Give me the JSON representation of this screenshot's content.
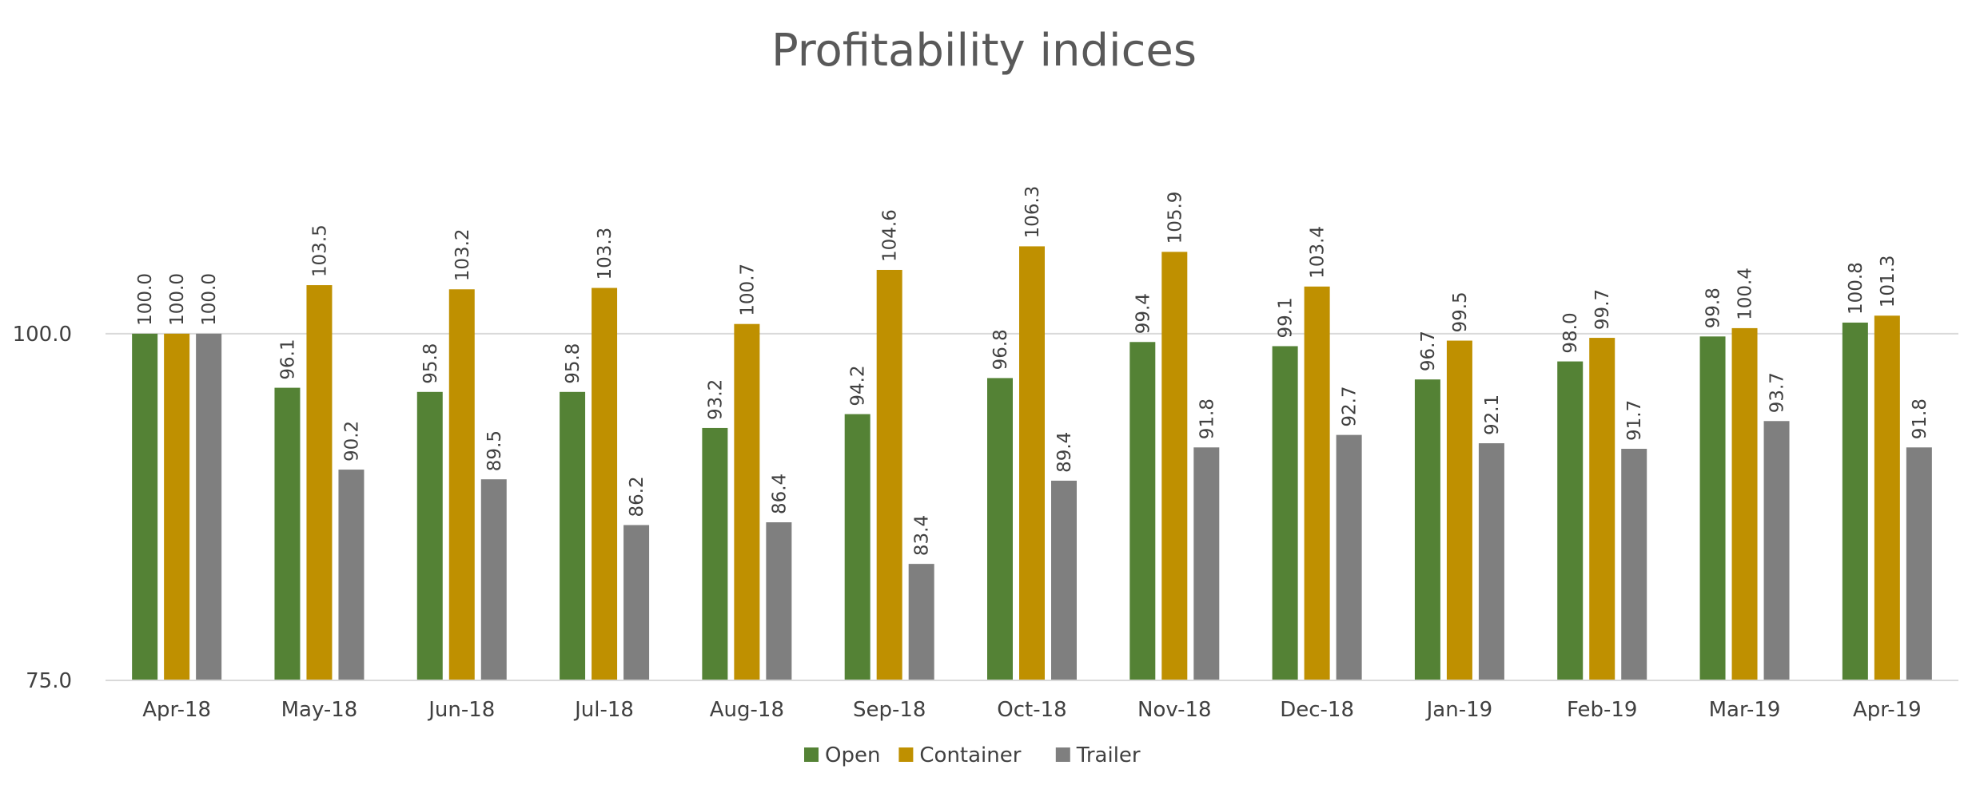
{
  "chart_data": {
    "type": "bar",
    "title": "Profitability indices",
    "categories": [
      "Apr-18",
      "May-18",
      "Jun-18",
      "Jul-18",
      "Aug-18",
      "Sep-18",
      "Oct-18",
      "Nov-18",
      "Dec-18",
      "Jan-19",
      "Feb-19",
      "Mar-19",
      "Apr-19"
    ],
    "series": [
      {
        "name": "Open",
        "color": "#548235",
        "values": [
          100.0,
          96.1,
          95.8,
          95.8,
          93.2,
          94.2,
          96.8,
          99.4,
          99.1,
          96.7,
          98.0,
          99.8,
          100.8
        ]
      },
      {
        "name": "Container",
        "color": "#BF9000",
        "values": [
          100.0,
          103.5,
          103.2,
          103.3,
          100.7,
          104.6,
          106.3,
          105.9,
          103.4,
          99.5,
          99.7,
          100.4,
          101.3
        ]
      },
      {
        "name": "Trailer",
        "color": "#7F7F7F",
        "values": [
          100.0,
          90.2,
          89.5,
          86.2,
          86.4,
          83.4,
          89.4,
          91.8,
          92.7,
          92.1,
          91.7,
          93.7,
          91.8
        ]
      }
    ],
    "y_ticks": [
      "75.0",
      "100.0"
    ],
    "ylim": [
      75,
      116
    ],
    "y_gridlines": [
      100
    ],
    "legend_position": "bottom",
    "data_labels": true,
    "data_label_rotation": "vertical"
  }
}
